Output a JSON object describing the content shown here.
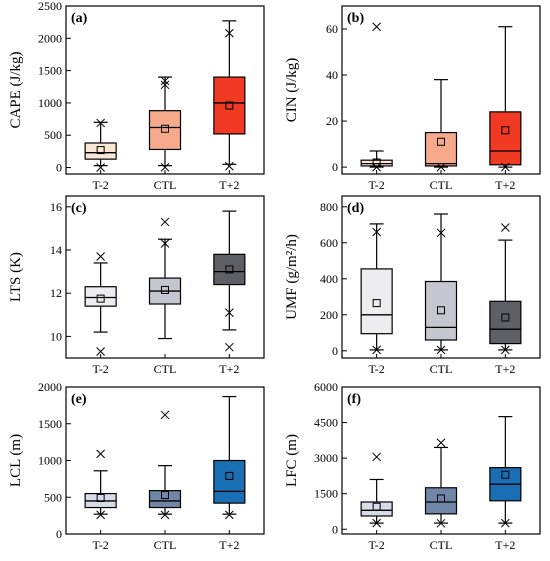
{
  "chart_data": [
    {
      "type": "box",
      "panel_label": "(a)",
      "ylabel": "CAPE (J/kg)",
      "ylim": [
        -100,
        2500
      ],
      "yticks": [
        "0",
        "500",
        "1000",
        "1500",
        "2000",
        "2500"
      ],
      "categories": [
        "T-2",
        "CTL",
        "T+2"
      ],
      "colors": [
        "#fbe7d4",
        "#f7a98b",
        "#f03a24"
      ],
      "median_color": "#000000",
      "boxes": [
        {
          "category": "T-2",
          "min": 30,
          "q1": 130,
          "median": 230,
          "q3": 380,
          "max": 700,
          "mean": 270,
          "outliers": [
            0,
            690
          ]
        },
        {
          "category": "CTL",
          "min": 30,
          "q1": 280,
          "median": 620,
          "q3": 880,
          "max": 1400,
          "mean": 600,
          "outliers": [
            5,
            1340,
            1280
          ]
        },
        {
          "category": "T+2",
          "min": 50,
          "q1": 520,
          "median": 1000,
          "q3": 1400,
          "max": 2270,
          "mean": 960,
          "outliers": [
            20,
            2080
          ]
        }
      ]
    },
    {
      "type": "box",
      "panel_label": "(b)",
      "ylabel": "CIN (J/kg)",
      "ylim": [
        -3,
        70
      ],
      "yticks": [
        "0",
        "20",
        "40",
        "60"
      ],
      "categories": [
        "T-2",
        "CTL",
        "T+2"
      ],
      "colors": [
        "#fbe7d4",
        "#f7a98b",
        "#f03a24"
      ],
      "median_color": "#000000",
      "boxes": [
        {
          "category": "T-2",
          "min": 0,
          "q1": 0.5,
          "median": 1.5,
          "q3": 3,
          "max": 7,
          "mean": 2,
          "outliers": [
            61,
            0
          ]
        },
        {
          "category": "CTL",
          "min": 0,
          "q1": 0.5,
          "median": 1.5,
          "q3": 15,
          "max": 38,
          "mean": 11,
          "outliers": [
            0
          ]
        },
        {
          "category": "T+2",
          "min": 0,
          "q1": 1,
          "median": 7,
          "q3": 24,
          "max": 61,
          "mean": 16,
          "outliers": [
            0
          ]
        }
      ]
    },
    {
      "type": "box",
      "panel_label": "(c)",
      "ylabel": "LTS (K)",
      "ylim": [
        9,
        16.5
      ],
      "yticks": [
        "10",
        "12",
        "14",
        "16"
      ],
      "categories": [
        "T-2",
        "CTL",
        "T+2"
      ],
      "colors": [
        "#ececf1",
        "#c4c6d0",
        "#5f6066"
      ],
      "median_color": "#000000",
      "boxes": [
        {
          "category": "T-2",
          "min": 10.2,
          "q1": 11.4,
          "median": 11.8,
          "q3": 12.3,
          "max": 13.4,
          "mean": 11.75,
          "outliers": [
            13.7,
            9.3
          ]
        },
        {
          "category": "CTL",
          "min": 9.9,
          "q1": 11.5,
          "median": 12.1,
          "q3": 12.7,
          "max": 14.5,
          "mean": 12.15,
          "outliers": [
            15.3,
            14.3
          ]
        },
        {
          "category": "T+2",
          "min": 10.3,
          "q1": 12.4,
          "median": 13.0,
          "q3": 13.8,
          "max": 15.8,
          "mean": 13.1,
          "outliers": [
            9.5,
            11.1
          ]
        }
      ]
    },
    {
      "type": "box",
      "panel_label": "(d)",
      "ylabel": "UMF (g/m²/h)",
      "ylim": [
        -40,
        860
      ],
      "yticks": [
        "0",
        "200",
        "400",
        "600",
        "800"
      ],
      "categories": [
        "T-2",
        "CTL",
        "T+2"
      ],
      "colors": [
        "#ececf1",
        "#c4c6d0",
        "#5f6066"
      ],
      "median_color": "#000000",
      "boxes": [
        {
          "category": "T-2",
          "min": 5,
          "q1": 95,
          "median": 200,
          "q3": 455,
          "max": 705,
          "mean": 265,
          "outliers": [
            660,
            5
          ]
        },
        {
          "category": "CTL",
          "min": 5,
          "q1": 60,
          "median": 130,
          "q3": 385,
          "max": 760,
          "mean": 225,
          "outliers": [
            655,
            5
          ]
        },
        {
          "category": "T+2",
          "min": 5,
          "q1": 40,
          "median": 120,
          "q3": 275,
          "max": 615,
          "mean": 185,
          "outliers": [
            685,
            5
          ]
        }
      ]
    },
    {
      "type": "box",
      "panel_label": "(e)",
      "ylabel": "LCL (m)",
      "ylim": [
        0,
        2000
      ],
      "yticks": [
        "0",
        "500",
        "1000",
        "1500",
        "2000"
      ],
      "categories": [
        "T-2",
        "CTL",
        "T+2"
      ],
      "colors": [
        "#d8dce8",
        "#6f86a6",
        "#1a6eb3"
      ],
      "median_color": "#000000",
      "boxes": [
        {
          "category": "T-2",
          "min": 270,
          "q1": 360,
          "median": 450,
          "q3": 550,
          "max": 860,
          "mean": 490,
          "outliers": [
            1090,
            260
          ]
        },
        {
          "category": "CTL",
          "min": 270,
          "q1": 360,
          "median": 450,
          "q3": 590,
          "max": 930,
          "mean": 530,
          "outliers": [
            1620,
            260
          ]
        },
        {
          "category": "T+2",
          "min": 270,
          "q1": 420,
          "median": 580,
          "q3": 1000,
          "max": 1870,
          "mean": 790,
          "outliers": [
            260
          ]
        }
      ]
    },
    {
      "type": "box",
      "panel_label": "(f)",
      "ylabel": "LFC (m)",
      "ylim": [
        -200,
        6000
      ],
      "yticks": [
        "0",
        "1500",
        "3000",
        "4500",
        "6000"
      ],
      "categories": [
        "T-2",
        "CTL",
        "T+2"
      ],
      "colors": [
        "#d8dce8",
        "#6f86a6",
        "#1a6eb3"
      ],
      "median_color": "#000000",
      "boxes": [
        {
          "category": "T-2",
          "min": 260,
          "q1": 560,
          "median": 800,
          "q3": 1150,
          "max": 2100,
          "mean": 950,
          "outliers": [
            3050,
            260
          ]
        },
        {
          "category": "CTL",
          "min": 260,
          "q1": 650,
          "median": 1150,
          "q3": 1750,
          "max": 3450,
          "mean": 1300,
          "outliers": [
            3650,
            250
          ]
        },
        {
          "category": "T+2",
          "min": 260,
          "q1": 1200,
          "median": 1900,
          "q3": 2600,
          "max": 4750,
          "mean": 2300,
          "outliers": [
            260
          ]
        }
      ]
    }
  ]
}
